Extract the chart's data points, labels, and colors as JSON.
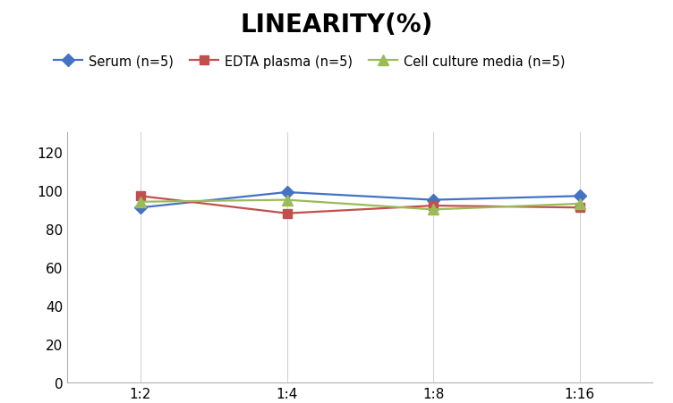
{
  "title": "LINEARITY(%)",
  "x_labels": [
    "1:2",
    "1:4",
    "1:8",
    "1:16"
  ],
  "x_positions": [
    0,
    1,
    2,
    3
  ],
  "series": [
    {
      "name": "Serum (n=5)",
      "values": [
        91,
        99,
        95,
        97
      ],
      "color": "#4472C4",
      "marker": "D",
      "marker_size": 7,
      "linewidth": 1.6
    },
    {
      "name": "EDTA plasma (n=5)",
      "values": [
        97,
        88,
        92,
        91
      ],
      "color": "#C0504D",
      "marker": "s",
      "marker_size": 7,
      "linewidth": 1.6
    },
    {
      "name": "Cell culture media (n=5)",
      "values": [
        94,
        95,
        90,
        93
      ],
      "color": "#9BBB59",
      "marker": "^",
      "marker_size": 8,
      "linewidth": 1.6
    }
  ],
  "ylim": [
    0,
    130
  ],
  "yticks": [
    0,
    20,
    40,
    60,
    80,
    100,
    120
  ],
  "background_color": "#ffffff",
  "grid_color": "#d3d3d3",
  "title_fontsize": 20,
  "legend_fontsize": 10.5,
  "tick_fontsize": 11
}
